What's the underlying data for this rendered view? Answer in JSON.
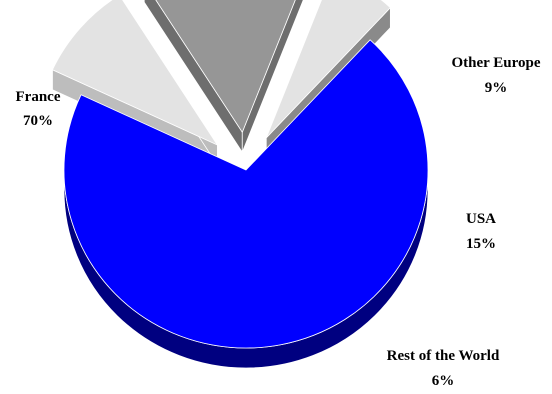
{
  "chart_data": {
    "type": "pie",
    "title": "",
    "style": "3d-exploded",
    "slices": [
      {
        "label": "France",
        "value": 70,
        "value_label": "70%",
        "color": "#0000FF",
        "side_color": "#000080"
      },
      {
        "label": "Other Europe",
        "value": 9,
        "value_label": "9%",
        "color": "#E3E3E3",
        "side_color": "#BDBDBD"
      },
      {
        "label": "USA",
        "value": 15,
        "value_label": "15%",
        "color": "#969696",
        "side_color": "#6E6E6E"
      },
      {
        "label": "Rest of the World",
        "value": 6,
        "value_label": "6%",
        "color": "#E3E3E3",
        "side_color": "#8A8A8A"
      }
    ]
  }
}
